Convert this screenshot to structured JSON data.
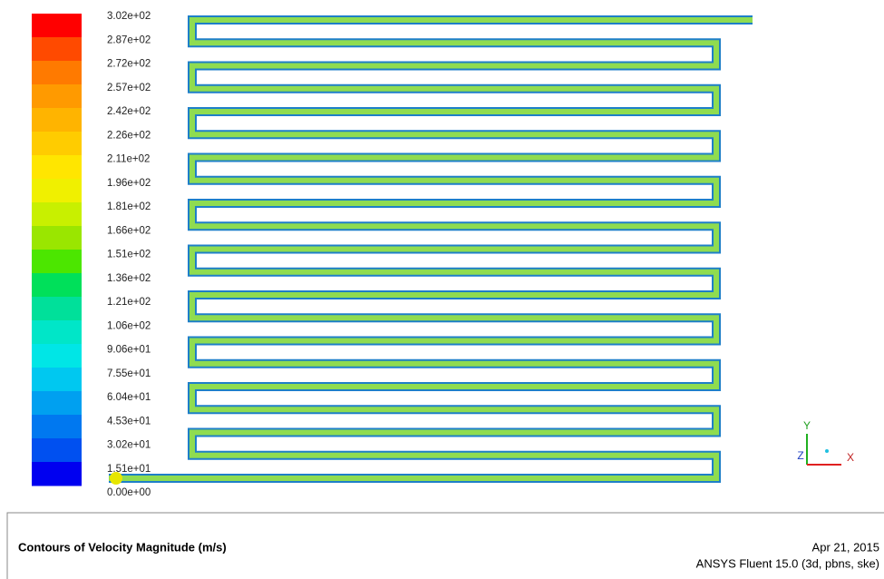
{
  "colorbar": {
    "labels": [
      "3.02e+02",
      "2.87e+02",
      "2.72e+02",
      "2.57e+02",
      "2.42e+02",
      "2.26e+02",
      "2.11e+02",
      "1.96e+02",
      "1.81e+02",
      "1.66e+02",
      "1.51e+02",
      "1.36e+02",
      "1.21e+02",
      "1.06e+02",
      "9.06e+01",
      "7.55e+01",
      "6.04e+01",
      "4.53e+01",
      "3.02e+01",
      "1.51e+01",
      "0.00e+00"
    ],
    "colors": [
      "#ff0000",
      "#ff4a00",
      "#ff7a00",
      "#ff9a00",
      "#ffb400",
      "#ffcc00",
      "#ffe600",
      "#f0f000",
      "#c8f000",
      "#9ae600",
      "#4ce600",
      "#00e05a",
      "#00e09a",
      "#00e6c8",
      "#00e6e6",
      "#00c8f0",
      "#00a0f0",
      "#0078f0",
      "#0050f0",
      "#0000f0"
    ]
  },
  "footer": {
    "title": "Contours of Velocity Magnitude (m/s)",
    "date": "Apr 21, 2015",
    "software": "ANSYS Fluent 15.0 (3d, pbns, ske)"
  },
  "axes": {
    "x": "X",
    "y": "Y",
    "z": "Z"
  }
}
